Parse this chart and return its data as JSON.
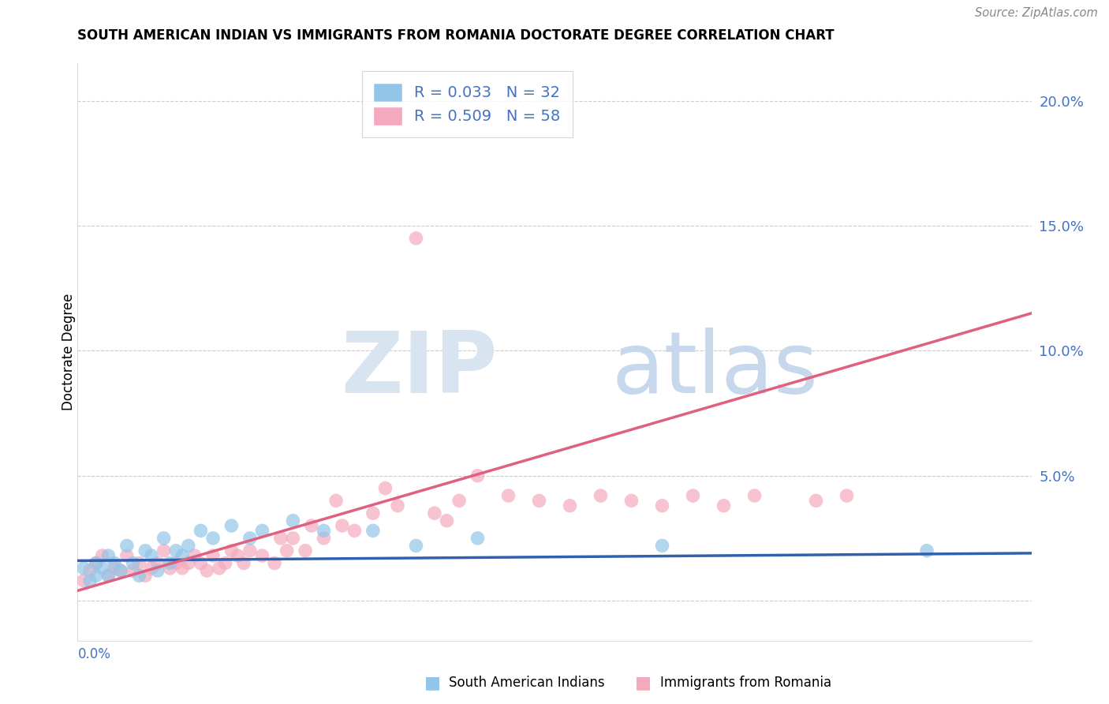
{
  "title": "SOUTH AMERICAN INDIAN VS IMMIGRANTS FROM ROMANIA DOCTORATE DEGREE CORRELATION CHART",
  "source": "Source: ZipAtlas.com",
  "ylabel": "Doctorate Degree",
  "xlim": [
    0.0,
    0.155
  ],
  "ylim": [
    -0.016,
    0.215
  ],
  "yticks": [
    0.0,
    0.05,
    0.1,
    0.15,
    0.2
  ],
  "ytick_labels": [
    "",
    "5.0%",
    "10.0%",
    "15.0%",
    "20.0%"
  ],
  "legend_blue": "R = 0.033   N = 32",
  "legend_pink": "R = 0.509   N = 58",
  "blue_color": "#92C5E8",
  "pink_color": "#F4AABC",
  "blue_line_color": "#3060B0",
  "pink_line_color": "#E06080",
  "blue_scatter_x": [
    0.001,
    0.002,
    0.003,
    0.003,
    0.004,
    0.005,
    0.005,
    0.006,
    0.007,
    0.008,
    0.009,
    0.01,
    0.011,
    0.012,
    0.013,
    0.014,
    0.015,
    0.016,
    0.017,
    0.018,
    0.02,
    0.022,
    0.025,
    0.028,
    0.03,
    0.035,
    0.04,
    0.048,
    0.055,
    0.065,
    0.095,
    0.138
  ],
  "blue_scatter_y": [
    0.013,
    0.008,
    0.01,
    0.015,
    0.013,
    0.018,
    0.01,
    0.015,
    0.012,
    0.022,
    0.015,
    0.01,
    0.02,
    0.018,
    0.012,
    0.025,
    0.015,
    0.02,
    0.018,
    0.022,
    0.028,
    0.025,
    0.03,
    0.025,
    0.028,
    0.032,
    0.028,
    0.028,
    0.022,
    0.025,
    0.022,
    0.02
  ],
  "pink_scatter_x": [
    0.001,
    0.002,
    0.003,
    0.004,
    0.005,
    0.006,
    0.007,
    0.008,
    0.009,
    0.01,
    0.011,
    0.012,
    0.013,
    0.014,
    0.015,
    0.016,
    0.017,
    0.018,
    0.019,
    0.02,
    0.021,
    0.022,
    0.023,
    0.024,
    0.025,
    0.026,
    0.027,
    0.028,
    0.03,
    0.032,
    0.033,
    0.034,
    0.035,
    0.037,
    0.038,
    0.04,
    0.042,
    0.043,
    0.045,
    0.048,
    0.05,
    0.052,
    0.055,
    0.058,
    0.06,
    0.062,
    0.065,
    0.07,
    0.075,
    0.08,
    0.085,
    0.09,
    0.095,
    0.1,
    0.105,
    0.11,
    0.12,
    0.125
  ],
  "pink_scatter_y": [
    0.008,
    0.012,
    0.015,
    0.018,
    0.01,
    0.013,
    0.012,
    0.018,
    0.012,
    0.015,
    0.01,
    0.013,
    0.015,
    0.02,
    0.013,
    0.015,
    0.013,
    0.015,
    0.018,
    0.015,
    0.012,
    0.018,
    0.013,
    0.015,
    0.02,
    0.018,
    0.015,
    0.02,
    0.018,
    0.015,
    0.025,
    0.02,
    0.025,
    0.02,
    0.03,
    0.025,
    0.04,
    0.03,
    0.028,
    0.035,
    0.045,
    0.038,
    0.145,
    0.035,
    0.032,
    0.04,
    0.05,
    0.042,
    0.04,
    0.038,
    0.042,
    0.04,
    0.038,
    0.042,
    0.038,
    0.042,
    0.04,
    0.042
  ],
  "blue_trend_x": [
    0.0,
    0.155
  ],
  "blue_trend_y": [
    0.016,
    0.019
  ],
  "pink_trend_x": [
    0.0,
    0.155
  ],
  "pink_trend_y": [
    0.004,
    0.115
  ]
}
